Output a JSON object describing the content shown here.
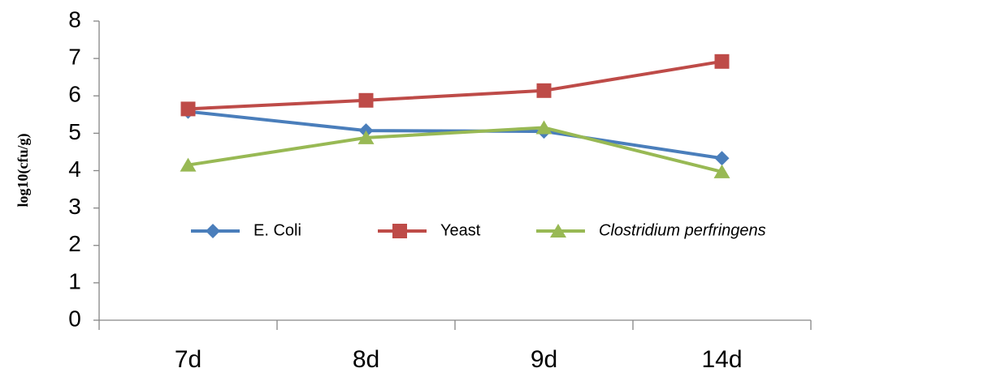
{
  "chart_data": {
    "type": "line",
    "y_label": "log10(cfu/g)",
    "categories": [
      "7d",
      "8d",
      "9d",
      "14d"
    ],
    "series": [
      {
        "name": "E. Coli",
        "color": "#4a7ebb",
        "marker": "diamond",
        "values": [
          5.58,
          5.07,
          5.05,
          4.33
        ]
      },
      {
        "name": "Yeast",
        "color": "#be4b48",
        "marker": "square",
        "values": [
          5.65,
          5.88,
          6.14,
          6.92
        ]
      },
      {
        "name": "Clostridium perfringens",
        "color": "#98b954",
        "marker": "triangle",
        "font_style": "italic",
        "values": [
          4.15,
          4.88,
          5.15,
          3.97
        ]
      }
    ],
    "ylim": [
      0,
      8
    ],
    "yticks": [
      0,
      1,
      2,
      3,
      4,
      5,
      6,
      7,
      8
    ],
    "grid": false,
    "legend": "inside"
  }
}
